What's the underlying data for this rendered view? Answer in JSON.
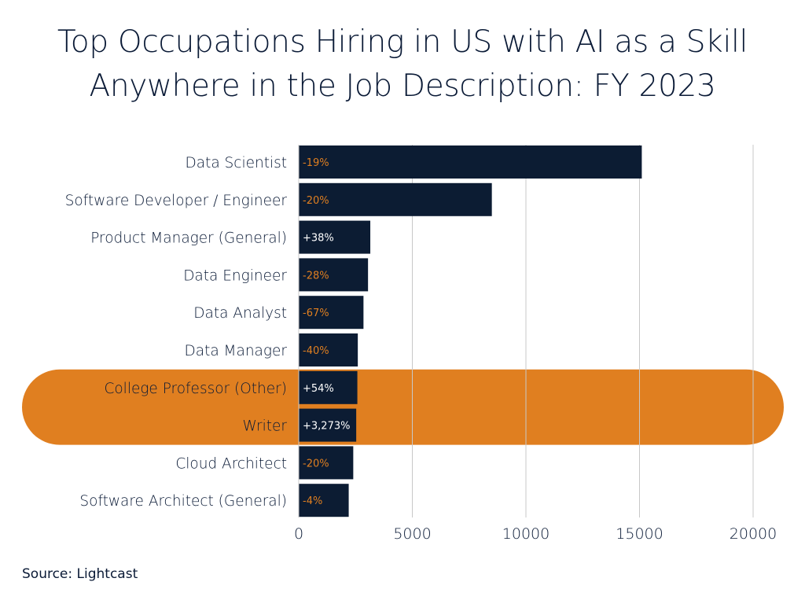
{
  "title_lines": [
    "Top Occupations Hiring in US with AI as a Skill",
    "Anywhere in the Job Description: FY 2023"
  ],
  "source": "Source: Lightcast",
  "colors": {
    "bar": "#0c1c33",
    "highlight": "#e07f20",
    "positive_label": "#ffffff",
    "negative_label": "#e07f20",
    "grid": "#c8c8c8",
    "text": "#0a1a36"
  },
  "chart_data": {
    "type": "bar",
    "orientation": "horizontal",
    "title": "Top Occupations Hiring in US with AI as a Skill Anywhere in the Job Description: FY 2023",
    "categories": [
      "Data Scientist",
      "Software Developer / Engineer",
      "Product Manager (General)",
      "Data Engineer",
      "Data Analyst",
      "Data Manager",
      "College Professor (Other)",
      "Writer",
      "Cloud Architect",
      "Software Architect (General)"
    ],
    "values": [
      15100,
      8500,
      3150,
      3050,
      2850,
      2600,
      2580,
      2530,
      2400,
      2200
    ],
    "bar_labels": [
      "-19%",
      "-20%",
      "+38%",
      "-28%",
      "-67%",
      "-40%",
      "+54%",
      "+3,273%",
      "-20%",
      "-4%"
    ],
    "highlighted": [
      "College Professor (Other)",
      "Writer"
    ],
    "xlim": [
      0,
      20000
    ],
    "xticks": [
      "0",
      "5000",
      "10000",
      "15000",
      "20000"
    ],
    "xtick_values": [
      0,
      5000,
      10000,
      15000,
      20000
    ],
    "grid": "vertical",
    "legend": "none"
  }
}
